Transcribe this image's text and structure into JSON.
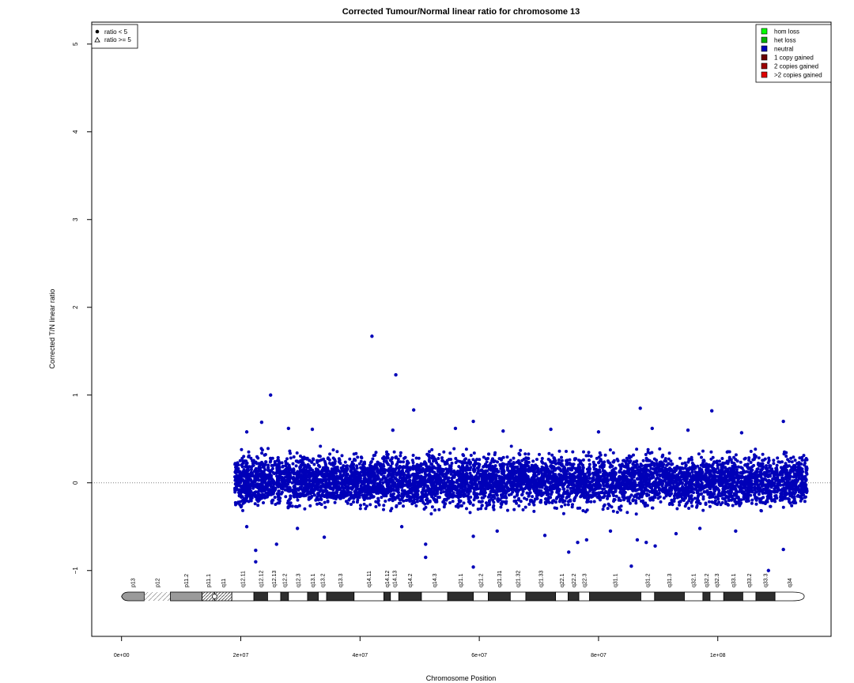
{
  "chart_data": {
    "type": "scatter",
    "title": "Corrected Tumour/Normal linear ratio for chromosome  13",
    "xlabel": "Chromosome Position",
    "ylabel": "Corrected T/N linear ratio",
    "xlim": [
      -5000000,
      119000000
    ],
    "ylim": [
      -1.75,
      5.25
    ],
    "x_ticks": [
      0,
      20000000,
      40000000,
      60000000,
      80000000,
      100000000
    ],
    "x_tick_labels": [
      "0e+00",
      "2e+07",
      "4e+07",
      "6e+07",
      "8e+07",
      "1e+08"
    ],
    "y_ticks": [
      -1,
      0,
      1,
      2,
      3,
      4,
      5
    ],
    "y_tick_labels": [
      "−1",
      "0",
      "1",
      "2",
      "3",
      "4",
      "5"
    ],
    "reference_line": {
      "y": 0,
      "style": "dotted",
      "color": "#808080"
    },
    "legend_left": {
      "position": "top-left",
      "items": [
        {
          "symbol": "filled-circle",
          "label": "ratio < 5"
        },
        {
          "symbol": "open-triangle",
          "label": "ratio >= 5"
        }
      ]
    },
    "legend_right": {
      "position": "top-right",
      "items": [
        {
          "label": "hom loss",
          "color": "#00ff00"
        },
        {
          "label": "het loss",
          "color": "#00b200"
        },
        {
          "label": "neutral",
          "color": "#0000b8"
        },
        {
          "label": "1 copy gained",
          "color": "#6b0000"
        },
        {
          "label": "2 copies gained",
          "color": "#9e0000"
        },
        {
          "label": ">2 copies gained",
          "color": "#e00000"
        }
      ]
    },
    "series": [
      {
        "name": "neutral",
        "color": "#0000b8",
        "density_band": {
          "x_start": 19000000,
          "x_end": 115000000,
          "y_low": -0.3,
          "y_high": 0.35
        },
        "points": [
          {
            "x": 42000000,
            "y": 1.67
          },
          {
            "x": 46000000,
            "y": 1.23
          },
          {
            "x": 25000000,
            "y": 1.0
          },
          {
            "x": 49000000,
            "y": 0.83
          },
          {
            "x": 87000000,
            "y": 0.85
          },
          {
            "x": 99000000,
            "y": 0.82
          },
          {
            "x": 59000000,
            "y": 0.7
          },
          {
            "x": 111000000,
            "y": 0.7
          },
          {
            "x": 23500000,
            "y": 0.69
          },
          {
            "x": 89000000,
            "y": 0.62
          },
          {
            "x": 56000000,
            "y": 0.62
          },
          {
            "x": 45500000,
            "y": 0.6
          },
          {
            "x": 28000000,
            "y": 0.62
          },
          {
            "x": 32000000,
            "y": 0.61
          },
          {
            "x": 72000000,
            "y": 0.61
          },
          {
            "x": 21000000,
            "y": 0.58
          },
          {
            "x": 95000000,
            "y": 0.6
          },
          {
            "x": 64000000,
            "y": 0.59
          },
          {
            "x": 80000000,
            "y": 0.58
          },
          {
            "x": 104000000,
            "y": 0.57
          },
          {
            "x": 22500000,
            "y": -0.77
          },
          {
            "x": 22500000,
            "y": -0.9
          },
          {
            "x": 26000000,
            "y": -0.7
          },
          {
            "x": 51000000,
            "y": -0.7
          },
          {
            "x": 51000000,
            "y": -0.85
          },
          {
            "x": 59000000,
            "y": -0.96
          },
          {
            "x": 59000000,
            "y": -0.61
          },
          {
            "x": 75000000,
            "y": -0.79
          },
          {
            "x": 76500000,
            "y": -0.68
          },
          {
            "x": 78000000,
            "y": -0.65
          },
          {
            "x": 85500000,
            "y": -0.95
          },
          {
            "x": 86500000,
            "y": -0.65
          },
          {
            "x": 88000000,
            "y": -0.68
          },
          {
            "x": 89500000,
            "y": -0.72
          },
          {
            "x": 93000000,
            "y": -0.58
          },
          {
            "x": 108500000,
            "y": -1.0
          },
          {
            "x": 111000000,
            "y": -0.76
          },
          {
            "x": 34000000,
            "y": -0.62
          },
          {
            "x": 21000000,
            "y": -0.5
          },
          {
            "x": 29500000,
            "y": -0.52
          },
          {
            "x": 47000000,
            "y": -0.5
          },
          {
            "x": 63000000,
            "y": -0.55
          },
          {
            "x": 71000000,
            "y": -0.6
          },
          {
            "x": 82000000,
            "y": -0.55
          },
          {
            "x": 97000000,
            "y": -0.52
          },
          {
            "x": 103000000,
            "y": -0.55
          }
        ]
      }
    ],
    "ideogram": {
      "x_start": 0,
      "x_end": 114500000,
      "bands": [
        {
          "name": "p13",
          "start": 0,
          "end": 3800000,
          "stain": "gpos"
        },
        {
          "name": "p12",
          "start": 3800000,
          "end": 8200000,
          "stain": "stalk"
        },
        {
          "name": "p11.2",
          "start": 8200000,
          "end": 13500000,
          "stain": "gpos"
        },
        {
          "name": "p11.1",
          "start": 13500000,
          "end": 15600000,
          "stain": "acen"
        },
        {
          "name": "q11",
          "start": 15600000,
          "end": 18500000,
          "stain": "gvar"
        },
        {
          "name": "q12.11",
          "start": 18500000,
          "end": 22200000,
          "stain": "gneg"
        },
        {
          "name": "q12.12",
          "start": 22200000,
          "end": 24500000,
          "stain": "gpos"
        },
        {
          "name": "q12.13",
          "start": 24500000,
          "end": 26700000,
          "stain": "gneg"
        },
        {
          "name": "q12.2",
          "start": 26700000,
          "end": 28000000,
          "stain": "gpos"
        },
        {
          "name": "q12.3",
          "start": 28000000,
          "end": 31200000,
          "stain": "gneg"
        },
        {
          "name": "q13.1",
          "start": 31200000,
          "end": 33000000,
          "stain": "gpos"
        },
        {
          "name": "q13.2",
          "start": 33000000,
          "end": 34400000,
          "stain": "gneg"
        },
        {
          "name": "q13.3",
          "start": 34400000,
          "end": 39000000,
          "stain": "gpos"
        },
        {
          "name": "q14.11",
          "start": 39000000,
          "end": 44000000,
          "stain": "gneg"
        },
        {
          "name": "q14.12",
          "start": 44000000,
          "end": 45100000,
          "stain": "gpos"
        },
        {
          "name": "q14.13",
          "start": 45100000,
          "end": 46500000,
          "stain": "gneg"
        },
        {
          "name": "q14.2",
          "start": 46500000,
          "end": 50300000,
          "stain": "gpos"
        },
        {
          "name": "q14.3",
          "start": 50300000,
          "end": 54700000,
          "stain": "gneg"
        },
        {
          "name": "q21.1",
          "start": 54700000,
          "end": 59000000,
          "stain": "gpos"
        },
        {
          "name": "q21.2",
          "start": 59000000,
          "end": 61500000,
          "stain": "gneg"
        },
        {
          "name": "q21.31",
          "start": 61500000,
          "end": 65200000,
          "stain": "gpos"
        },
        {
          "name": "q21.32",
          "start": 65200000,
          "end": 67800000,
          "stain": "gneg"
        },
        {
          "name": "q21.33",
          "start": 67800000,
          "end": 72800000,
          "stain": "gpos"
        },
        {
          "name": "q22.1",
          "start": 72800000,
          "end": 74900000,
          "stain": "gneg"
        },
        {
          "name": "q22.2",
          "start": 74900000,
          "end": 76700000,
          "stain": "gpos"
        },
        {
          "name": "q22.3",
          "start": 76700000,
          "end": 78500000,
          "stain": "gneg"
        },
        {
          "name": "q31.1",
          "start": 78500000,
          "end": 87100000,
          "stain": "gpos"
        },
        {
          "name": "q31.2",
          "start": 87100000,
          "end": 89400000,
          "stain": "gneg"
        },
        {
          "name": "q31.3",
          "start": 89400000,
          "end": 94400000,
          "stain": "gpos"
        },
        {
          "name": "q32.1",
          "start": 94400000,
          "end": 97500000,
          "stain": "gneg"
        },
        {
          "name": "q32.2",
          "start": 97500000,
          "end": 98700000,
          "stain": "gpos"
        },
        {
          "name": "q32.3",
          "start": 98700000,
          "end": 101000000,
          "stain": "gneg"
        },
        {
          "name": "q33.1",
          "start": 101000000,
          "end": 104200000,
          "stain": "gpos"
        },
        {
          "name": "q33.2",
          "start": 104200000,
          "end": 106400000,
          "stain": "gneg"
        },
        {
          "name": "q33.3",
          "start": 106400000,
          "end": 109600000,
          "stain": "gpos"
        },
        {
          "name": "q34",
          "start": 109600000,
          "end": 114500000,
          "stain": "gneg"
        }
      ]
    }
  }
}
